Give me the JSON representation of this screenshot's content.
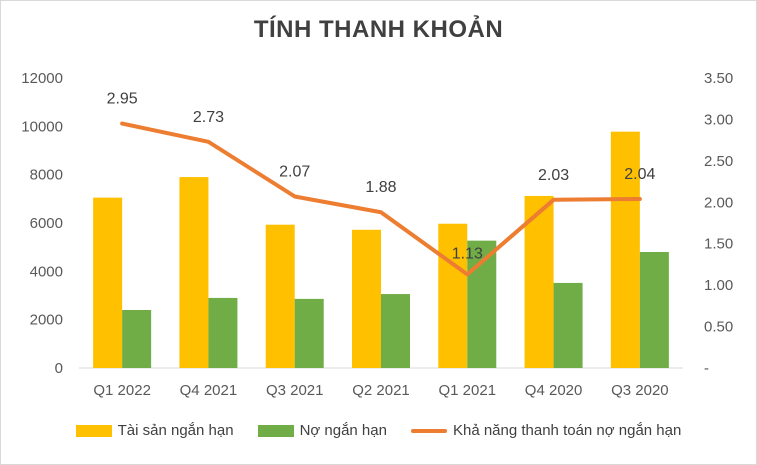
{
  "chart_data": {
    "type": "bar",
    "title": "TÍNH THANH KHOẢN",
    "categories": [
      "Q1 2022",
      "Q4 2021",
      "Q3 2021",
      "Q2 2021",
      "Q1 2021",
      "Q4 2020",
      "Q3 2020"
    ],
    "series": [
      {
        "name": "Tài sản ngắn hạn",
        "type": "bar",
        "axis": "left",
        "color": "#FFC000",
        "values": [
          7050,
          7900,
          5930,
          5720,
          5970,
          7120,
          9780
        ]
      },
      {
        "name": "Nợ ngắn hạn",
        "type": "bar",
        "axis": "left",
        "color": "#70AD47",
        "values": [
          2400,
          2900,
          2860,
          3060,
          5270,
          3520,
          4800
        ]
      },
      {
        "name": "Khả năng thanh toán nợ ngắn hạn",
        "type": "line",
        "axis": "right",
        "color": "#ED7D31",
        "values": [
          2.95,
          2.73,
          2.07,
          1.88,
          1.13,
          2.03,
          2.04
        ],
        "data_labels": [
          "2.95",
          "2.73",
          "2.07",
          "1.88",
          "1.13",
          "2.03",
          "2.04"
        ]
      }
    ],
    "ylim_left": [
      0,
      12000
    ],
    "yticks_left": [
      "0",
      "2000",
      "4000",
      "6000",
      "8000",
      "10000",
      "12000"
    ],
    "ylim_right": [
      0,
      3.5
    ],
    "yticks_right": [
      "-",
      "0.50",
      "1.00",
      "1.50",
      "2.00",
      "2.50",
      "3.00",
      "3.50"
    ],
    "grid": false,
    "legend_position": "bottom"
  }
}
